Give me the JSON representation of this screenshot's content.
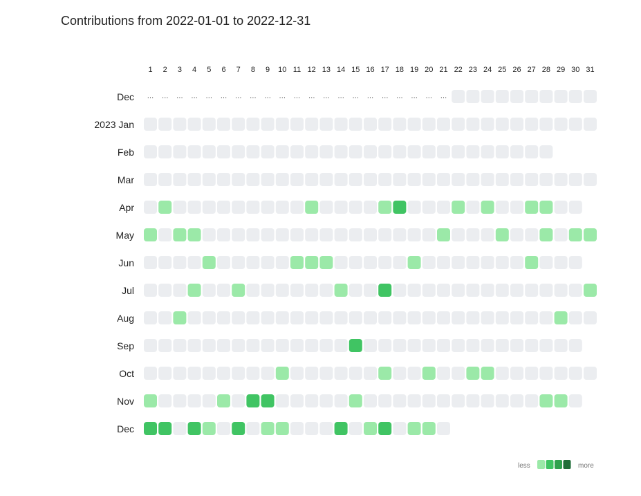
{
  "chart_data": {
    "type": "heatmap",
    "title": "Contributions from 2022-01-01 to 2022-12-31",
    "x_labels": [
      "1",
      "2",
      "3",
      "4",
      "5",
      "6",
      "7",
      "8",
      "9",
      "10",
      "11",
      "12",
      "13",
      "14",
      "15",
      "16",
      "17",
      "18",
      "19",
      "20",
      "21",
      "22",
      "23",
      "24",
      "25",
      "26",
      "27",
      "28",
      "29",
      "30",
      "31"
    ],
    "missing_placeholder": "…",
    "legend": {
      "less": "less",
      "more": "more",
      "levels": [
        1,
        2,
        3,
        4
      ]
    },
    "colors": [
      "#ebedf0",
      "#9be9a8",
      "#40c463",
      "#30a14e",
      "#216e39"
    ],
    "rows": [
      {
        "label": "Dec",
        "days": 31,
        "leading_missing": 21,
        "values": [
          0,
          0,
          0,
          0,
          0,
          0,
          0,
          0,
          0,
          0
        ]
      },
      {
        "label": "2023 Jan",
        "days": 31,
        "leading_missing": 0,
        "values": [
          0,
          0,
          0,
          0,
          0,
          0,
          0,
          0,
          0,
          0,
          0,
          0,
          0,
          0,
          0,
          0,
          0,
          0,
          0,
          0,
          0,
          0,
          0,
          0,
          0,
          0,
          0,
          0,
          0,
          0,
          0
        ]
      },
      {
        "label": "Feb",
        "days": 28,
        "leading_missing": 0,
        "values": [
          0,
          0,
          0,
          0,
          0,
          0,
          0,
          0,
          0,
          0,
          0,
          0,
          0,
          0,
          0,
          0,
          0,
          0,
          0,
          0,
          0,
          0,
          0,
          0,
          0,
          0,
          0,
          0
        ]
      },
      {
        "label": "Mar",
        "days": 31,
        "leading_missing": 0,
        "values": [
          0,
          0,
          0,
          0,
          0,
          0,
          0,
          0,
          0,
          0,
          0,
          0,
          0,
          0,
          0,
          0,
          0,
          0,
          0,
          0,
          0,
          0,
          0,
          0,
          0,
          0,
          0,
          0,
          0,
          0,
          0
        ]
      },
      {
        "label": "Apr",
        "days": 30,
        "leading_missing": 0,
        "values": [
          0,
          1,
          0,
          0,
          0,
          0,
          0,
          0,
          0,
          0,
          0,
          1,
          0,
          0,
          0,
          0,
          1,
          2,
          0,
          0,
          0,
          1,
          0,
          1,
          0,
          0,
          1,
          1,
          0,
          0
        ]
      },
      {
        "label": "May",
        "days": 31,
        "leading_missing": 0,
        "values": [
          1,
          0,
          1,
          1,
          0,
          0,
          0,
          0,
          0,
          0,
          0,
          0,
          0,
          0,
          0,
          0,
          0,
          0,
          0,
          0,
          1,
          0,
          0,
          0,
          1,
          0,
          0,
          1,
          0,
          1,
          1
        ]
      },
      {
        "label": "Jun",
        "days": 30,
        "leading_missing": 0,
        "values": [
          0,
          0,
          0,
          0,
          1,
          0,
          0,
          0,
          0,
          0,
          1,
          1,
          1,
          0,
          0,
          0,
          0,
          0,
          1,
          0,
          0,
          0,
          0,
          0,
          0,
          0,
          1,
          0,
          0,
          0
        ]
      },
      {
        "label": "Jul",
        "days": 31,
        "leading_missing": 0,
        "values": [
          0,
          0,
          0,
          1,
          0,
          0,
          1,
          0,
          0,
          0,
          0,
          0,
          0,
          1,
          0,
          0,
          2,
          0,
          0,
          0,
          0,
          0,
          0,
          0,
          0,
          0,
          0,
          0,
          0,
          0,
          1
        ]
      },
      {
        "label": "Aug",
        "days": 31,
        "leading_missing": 0,
        "values": [
          0,
          0,
          1,
          0,
          0,
          0,
          0,
          0,
          0,
          0,
          0,
          0,
          0,
          0,
          0,
          0,
          0,
          0,
          0,
          0,
          0,
          0,
          0,
          0,
          0,
          0,
          0,
          0,
          1,
          0,
          0
        ]
      },
      {
        "label": "Sep",
        "days": 30,
        "leading_missing": 0,
        "values": [
          0,
          0,
          0,
          0,
          0,
          0,
          0,
          0,
          0,
          0,
          0,
          0,
          0,
          0,
          2,
          0,
          0,
          0,
          0,
          0,
          0,
          0,
          0,
          0,
          0,
          0,
          0,
          0,
          0,
          0
        ]
      },
      {
        "label": "Oct",
        "days": 31,
        "leading_missing": 0,
        "values": [
          0,
          0,
          0,
          0,
          0,
          0,
          0,
          0,
          0,
          1,
          0,
          0,
          0,
          0,
          0,
          0,
          1,
          0,
          0,
          1,
          0,
          0,
          1,
          1,
          0,
          0,
          0,
          0,
          0,
          0,
          0
        ]
      },
      {
        "label": "Nov",
        "days": 30,
        "leading_missing": 0,
        "values": [
          1,
          0,
          0,
          0,
          0,
          1,
          0,
          2,
          2,
          0,
          0,
          0,
          0,
          0,
          1,
          0,
          0,
          0,
          0,
          0,
          0,
          0,
          0,
          0,
          0,
          0,
          0,
          1,
          1,
          0
        ]
      },
      {
        "label": "Dec",
        "days": 21,
        "leading_missing": 0,
        "values": [
          2,
          2,
          0,
          2,
          1,
          0,
          2,
          0,
          1,
          1,
          0,
          0,
          0,
          2,
          0,
          1,
          2,
          0,
          1,
          1,
          0
        ]
      }
    ]
  }
}
